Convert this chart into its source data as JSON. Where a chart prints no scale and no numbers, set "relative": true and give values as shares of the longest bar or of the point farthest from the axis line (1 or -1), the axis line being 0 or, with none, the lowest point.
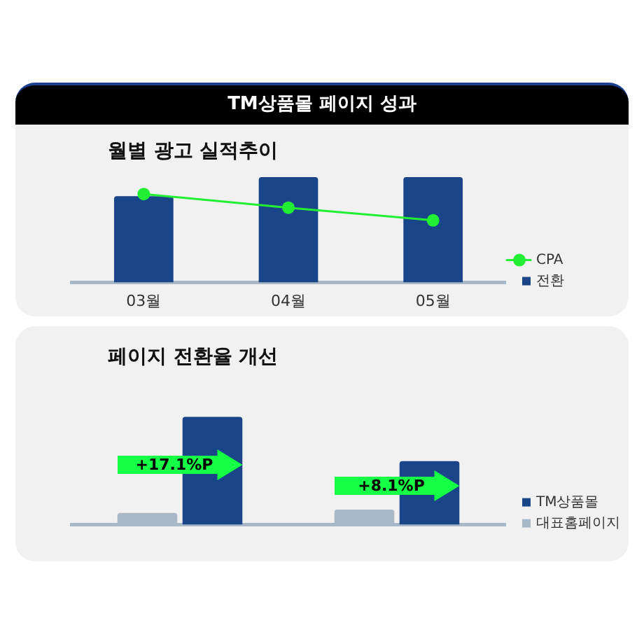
{
  "chart_data": [
    {
      "type": "bar",
      "title": "TM상품몰 페이지 성과",
      "subtitle": "월별 광고 실적추이",
      "categories": [
        "03월",
        "04월",
        "05월"
      ],
      "relative": true,
      "series": [
        {
          "name": "전환",
          "color": "#1b4589",
          "values": [
            0.82,
            1,
            1
          ]
        },
        {
          "name": "CPA",
          "type": "line",
          "color": "#22ee33",
          "values": [
            0.84,
            0.71,
            0.59
          ]
        }
      ],
      "marker": "circle",
      "legend": "bottom right"
    },
    {
      "type": "bar",
      "title": "페이지 전환율 개선",
      "categories": [
        null,
        null
      ],
      "relative": true,
      "series": [
        {
          "name": "대표홈페이지",
          "color": "#a9b8c6",
          "values": [
            0.11,
            0.14
          ]
        },
        {
          "name": "TM상품몰",
          "color": "#1b4589",
          "values": [
            1,
            0.59
          ]
        }
      ],
      "annotations": [
        "+17.1%P",
        "+8.1%P"
      ],
      "legend": "bottom right"
    }
  ]
}
